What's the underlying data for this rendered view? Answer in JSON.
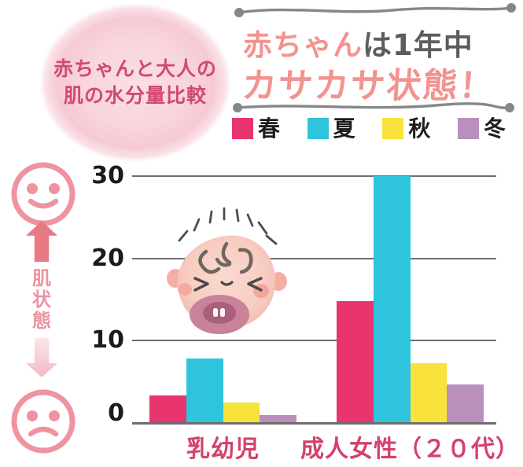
{
  "bubble": {
    "line1": "赤ちゃんと大人の",
    "line2": "肌の水分量比較"
  },
  "headline": {
    "highlight": "赤ちゃん",
    "rest": "は1年中",
    "line2": "カサカサ状態！"
  },
  "legend": {
    "items": [
      {
        "label": "春",
        "color": "#e8356e"
      },
      {
        "label": "夏",
        "color": "#2ec4dc"
      },
      {
        "label": "秋",
        "color": "#f8e23b"
      },
      {
        "label": "冬",
        "color": "#b990bc"
      }
    ]
  },
  "skin_axis": {
    "label_chars": [
      "肌",
      "状",
      "態"
    ],
    "good_icon": "happy-face",
    "bad_icon": "sad-face"
  },
  "colors": {
    "bubble_pink": "#f6cad4",
    "headline_salmon": "#f29390",
    "headline_gray": "#5e5d5d",
    "rule_gray": "#878787",
    "category_label": "#d3426b",
    "smiley_pink": "#ef93a0",
    "up_arrow": "#e97983",
    "down_arrow": "#f2b9c5"
  },
  "chart_data": {
    "type": "bar",
    "categories": [
      "乳幼児",
      "成人女性（２０代）"
    ],
    "series": [
      {
        "name": "春",
        "color": "#e8356e",
        "values": [
          3.3,
          14.8
        ]
      },
      {
        "name": "夏",
        "color": "#2ec4dc",
        "values": [
          7.8,
          30
        ]
      },
      {
        "name": "秋",
        "color": "#f8e23b",
        "values": [
          2.5,
          7.3
        ]
      },
      {
        "name": "冬",
        "color": "#b990bc",
        "values": [
          1.0,
          4.7
        ]
      }
    ],
    "title": "赤ちゃんは1年中カサカサ状態！",
    "subtitle": "赤ちゃんと大人の肌の水分量比較",
    "xlabel": "",
    "ylabel": "肌状態",
    "ylim": [
      0,
      30
    ],
    "yticks": [
      0,
      10,
      20,
      30
    ],
    "grid": true,
    "legend_position": "top-right"
  }
}
